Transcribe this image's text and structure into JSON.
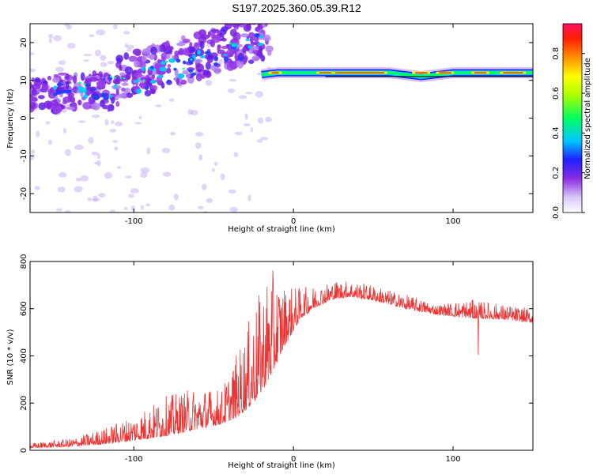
{
  "figure_title": "S197.2025.360.05.39.R12",
  "chart_data": [
    {
      "type": "heatmap",
      "title": "",
      "xlabel": "Height of straight line (km)",
      "ylabel": "Frequency (Hz)",
      "xlim": [
        -165,
        150
      ],
      "ylim": [
        -25,
        25
      ],
      "x_ticks": [
        -100,
        0,
        100
      ],
      "y_ticks": [
        -20,
        -10,
        0,
        10,
        20
      ],
      "colorbar": {
        "label": "Normalized spectral amplitude",
        "range": [
          0,
          0.95
        ],
        "ticks": [
          0.0,
          0.2,
          0.4,
          0.6,
          0.8
        ],
        "tick_labels": [
          "0.0",
          "0.2",
          "0.4",
          "0.6",
          "0.8"
        ]
      },
      "ridge": {
        "description": "dominant frequency band",
        "x": [
          -20,
          -10,
          0,
          10,
          20,
          40,
          60,
          80,
          100,
          115,
          130,
          150
        ],
        "freq": [
          11.5,
          12,
          12,
          12,
          12,
          12,
          12,
          11,
          12,
          12,
          12,
          12
        ]
      }
    },
    {
      "type": "line",
      "title": "",
      "xlabel": "Height of straight line (km)",
      "ylabel": "SNR (10 * v/v)",
      "xlim": [
        -165,
        150
      ],
      "ylim": [
        0,
        800
      ],
      "x_ticks": [
        -100,
        0,
        100
      ],
      "y_ticks": [
        0,
        200,
        400,
        600,
        800
      ],
      "color": "#ee3333",
      "envelope": {
        "x": [
          -165,
          -140,
          -120,
          -100,
          -80,
          -60,
          -45,
          -35,
          -25,
          -15,
          -5,
          5,
          15,
          25,
          35,
          50,
          70,
          90,
          110,
          130,
          150
        ],
        "base": [
          10,
          15,
          25,
          40,
          60,
          90,
          110,
          140,
          200,
          300,
          450,
          560,
          610,
          640,
          650,
          635,
          600,
          575,
          560,
          555,
          540
        ],
        "peak": [
          30,
          50,
          90,
          150,
          230,
          270,
          260,
          420,
          600,
          780,
          700,
          690,
          700,
          720,
          720,
          700,
          660,
          620,
          640,
          620,
          600
        ]
      }
    }
  ]
}
